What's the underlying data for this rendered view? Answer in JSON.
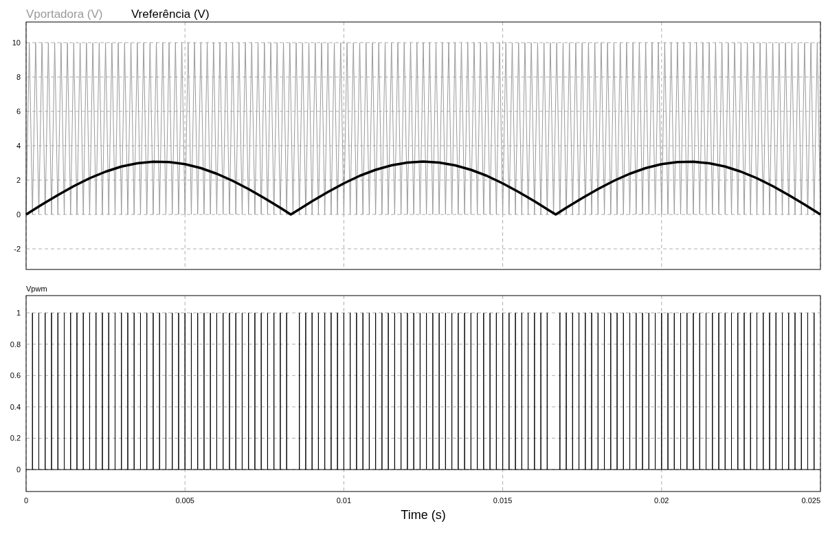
{
  "chart_data": [
    {
      "type": "line",
      "legend": "top left",
      "grid": true,
      "tick_labels": "y",
      "xlim": [
        0,
        0.025
      ],
      "ylim": [
        -3.2,
        11.2
      ],
      "yticks": [
        -2,
        0,
        2,
        4,
        6,
        8,
        10
      ],
      "xticks": [
        0,
        0.005,
        0.01,
        0.015,
        0.02,
        0.025
      ],
      "x": [
        0,
        0.0001,
        0.0002,
        0.0003,
        0.0004,
        0.0005,
        0.0006,
        0.0007,
        0.0008,
        0.0009,
        0.001,
        0.0011,
        0.0012,
        0.0013,
        0.0014,
        0.0015,
        0.0016,
        0.0017,
        0.0018,
        0.0019,
        0.002,
        0.0021,
        0.0022,
        0.0023,
        0.0024,
        0.0025,
        0.0026,
        0.0027,
        0.0028,
        0.0029,
        0.003,
        0.0031,
        0.0032,
        0.0033,
        0.0034,
        0.0035,
        0.0036,
        0.0037,
        0.0038,
        0.0039,
        0.004,
        0.0041,
        0.0042,
        0.0043,
        0.0044,
        0.0045,
        0.0046,
        0.0047,
        0.0048,
        0.0049,
        0.005,
        0.0051,
        0.0052,
        0.0053,
        0.0054,
        0.0055,
        0.0056,
        0.0057,
        0.0058,
        0.0059,
        0.006,
        0.0061,
        0.0062,
        0.0063,
        0.0064,
        0.0065,
        0.0066,
        0.0067,
        0.0068,
        0.0069,
        0.007,
        0.0071,
        0.0072,
        0.0073,
        0.0074,
        0.0075,
        0.0076,
        0.0077,
        0.0078,
        0.0079,
        0.008,
        0.0081,
        0.0082,
        0.0083,
        0.0084,
        0.0085,
        0.0086,
        0.0087,
        0.0088,
        0.0089,
        0.009,
        0.0091,
        0.0092,
        0.0093,
        0.0094,
        0.0095,
        0.0096,
        0.0097,
        0.0098,
        0.0099,
        0.01,
        0.0101,
        0.0102,
        0.0103,
        0.0104,
        0.0105,
        0.0106,
        0.0107,
        0.0108,
        0.0109,
        0.011,
        0.0111,
        0.0112,
        0.0113,
        0.0114,
        0.0115,
        0.0116,
        0.0117,
        0.0118,
        0.0119,
        0.012,
        0.0121,
        0.0122,
        0.0123,
        0.0124,
        0.0125,
        0.0126,
        0.0127,
        0.0128,
        0.0129,
        0.013,
        0.0131,
        0.0132,
        0.0133,
        0.0134,
        0.0135,
        0.0136,
        0.0137,
        0.0138,
        0.0139,
        0.014,
        0.0141,
        0.0142,
        0.0143,
        0.0144,
        0.0145,
        0.0146,
        0.0147,
        0.0148,
        0.0149,
        0.015,
        0.0151,
        0.0152,
        0.0153,
        0.0154,
        0.0155,
        0.0156,
        0.0157,
        0.0158,
        0.0159,
        0.016,
        0.0161,
        0.0162,
        0.0163,
        0.0164,
        0.0165,
        0.0166,
        0.0167,
        0.0168,
        0.0169,
        0.017,
        0.0171,
        0.0172,
        0.0173,
        0.0174,
        0.0175,
        0.0176,
        0.0177,
        0.0178,
        0.0179,
        0.018,
        0.0181,
        0.0182,
        0.0183,
        0.0184,
        0.0185,
        0.0186,
        0.0187,
        0.0188,
        0.0189,
        0.019,
        0.0191,
        0.0192,
        0.0193,
        0.0194,
        0.0195,
        0.0196,
        0.0197,
        0.0198,
        0.0199,
        0.02,
        0.0201,
        0.0202,
        0.0203,
        0.0204,
        0.0205,
        0.0206,
        0.0207,
        0.0208,
        0.0209,
        0.021,
        0.0211,
        0.0212,
        0.0213,
        0.0214,
        0.0215,
        0.0216,
        0.0217,
        0.0218,
        0.0219,
        0.022,
        0.0221,
        0.0222,
        0.0223,
        0.0224,
        0.0225,
        0.0226,
        0.0227,
        0.0228,
        0.0229,
        0.023,
        0.0231,
        0.0232,
        0.0233,
        0.0234,
        0.0235,
        0.0236,
        0.0237,
        0.0238,
        0.0239,
        0.024,
        0.0241,
        0.0242,
        0.0243,
        0.0244,
        0.0245,
        0.0246,
        0.0247,
        0.0248,
        0.0249,
        0.025
      ],
      "series": [
        {
          "name": "Vportadora (V)",
          "color": "#999999",
          "values": [
            0,
            10,
            0,
            10,
            0,
            10,
            0,
            10,
            0,
            10,
            0,
            10,
            0,
            10,
            0,
            10,
            0,
            10,
            0,
            10,
            0,
            10,
            0,
            10,
            0,
            10,
            0,
            10,
            0,
            10,
            0,
            10,
            0,
            10,
            0,
            10,
            0,
            10,
            0,
            10,
            0,
            10,
            0,
            10,
            0,
            10,
            0,
            10,
            0,
            10,
            0,
            10,
            0,
            10,
            0,
            10,
            0,
            10,
            0,
            10,
            0,
            10,
            0,
            10,
            0,
            10,
            0,
            10,
            0,
            10,
            0,
            10,
            0,
            10,
            0,
            10,
            0,
            10,
            0,
            10,
            0,
            10,
            0,
            10,
            0,
            10,
            0,
            10,
            0,
            10,
            0,
            10,
            0,
            10,
            0,
            10,
            0,
            10,
            0,
            10,
            0,
            10,
            0,
            10,
            0,
            10,
            0,
            10,
            0,
            10,
            0,
            10,
            0,
            10,
            0,
            10,
            0,
            10,
            0,
            10,
            0,
            10,
            0,
            10,
            0,
            10,
            0,
            10,
            0,
            10,
            0,
            10,
            0,
            10,
            0,
            10,
            0,
            10,
            0,
            10,
            0,
            10,
            0,
            10,
            0,
            10,
            0,
            10,
            0,
            10,
            0,
            10,
            0,
            10,
            0,
            10,
            0,
            10,
            0,
            10,
            0,
            10,
            0,
            10,
            0,
            10,
            0,
            10,
            0,
            10,
            0,
            10,
            0,
            10,
            0,
            10,
            0,
            10,
            0,
            10,
            0,
            10,
            0,
            10,
            0,
            10,
            0,
            10,
            0,
            10,
            0,
            10,
            0,
            10,
            0,
            10,
            0,
            10,
            0,
            10,
            0,
            10,
            0,
            10,
            0,
            10,
            0,
            10,
            0,
            10,
            0,
            10,
            0,
            10,
            0,
            10,
            0,
            10,
            0,
            10,
            0,
            10,
            0,
            10,
            0,
            10,
            0,
            10,
            0,
            10,
            0,
            10,
            0,
            10,
            0,
            10,
            0,
            10,
            0,
            10,
            0,
            10,
            0,
            10,
            0,
            10,
            0,
            10,
            0,
            10,
            0
          ]
        },
        {
          "name": "Vreferência (V)",
          "color": "#000000",
          "x": [
            0,
            0.0005,
            0.001,
            0.0015,
            0.002,
            0.0025,
            0.003,
            0.0035,
            0.004,
            0.0045,
            0.005,
            0.0055,
            0.006,
            0.0065,
            0.007,
            0.0075,
            0.008,
            0.00833,
            0.0085,
            0.009,
            0.0095,
            0.01,
            0.0105,
            0.011,
            0.0115,
            0.012,
            0.0125,
            0.013,
            0.0135,
            0.014,
            0.0145,
            0.015,
            0.0155,
            0.016,
            0.0165,
            0.01667,
            0.017,
            0.0175,
            0.018,
            0.0185,
            0.019,
            0.0195,
            0.02,
            0.0205,
            0.021,
            0.0215,
            0.022,
            0.0225,
            0.023,
            0.0235,
            0.024,
            0.0245,
            0.025
          ],
          "values": [
            0,
            0.58,
            1.13,
            1.65,
            2.11,
            2.49,
            2.79,
            2.98,
            3.07,
            3.05,
            2.93,
            2.7,
            2.37,
            1.96,
            1.48,
            0.95,
            0.39,
            0,
            0.19,
            0.77,
            1.31,
            1.81,
            2.25,
            2.6,
            2.86,
            3.02,
            3.08,
            3.02,
            2.86,
            2.6,
            2.25,
            1.81,
            1.31,
            0.77,
            0.19,
            0,
            0.39,
            0.95,
            1.48,
            1.96,
            2.37,
            2.7,
            2.93,
            3.05,
            3.07,
            2.98,
            2.79,
            2.49,
            2.11,
            1.65,
            1.13,
            0.58,
            0
          ]
        }
      ]
    },
    {
      "type": "line",
      "legend": "top left",
      "grid": true,
      "xlabel": "Time (s)",
      "xlim": [
        0,
        0.025
      ],
      "ylim": [
        -0.14,
        1.11
      ],
      "xticks": [
        0,
        0.005,
        0.01,
        0.015,
        0.02,
        0.025
      ],
      "yticks": [
        0,
        0.2,
        0.4,
        0.6,
        0.8,
        1
      ],
      "series": [
        {
          "name": "Vpwm",
          "color": "#000000",
          "x": [
            0,
            0.0002,
            0.0002,
            0.0002,
            0.0004,
            0.0004,
            0.0004,
            0.0006,
            0.0006,
            0.0006,
            0.0008,
            0.0008,
            0.0008,
            0.001,
            0.001,
            0.001,
            0.0012,
            0.0012,
            0.0012,
            0.0014,
            0.0014,
            0.0014,
            0.0016,
            0.0016,
            0.0016,
            0.0018,
            0.0018,
            0.0018,
            0.002,
            0.002,
            0.002,
            0.0022,
            0.0022,
            0.0022,
            0.0024,
            0.0024,
            0.0024,
            0.0026,
            0.0026,
            0.0026,
            0.0028,
            0.0028,
            0.0028,
            0.003,
            0.003,
            0.003,
            0.0032,
            0.0032,
            0.0032,
            0.0034,
            0.0034,
            0.0034,
            0.0036,
            0.0036,
            0.0036,
            0.0038,
            0.0038,
            0.0038,
            0.004,
            0.004,
            0.004,
            0.0042,
            0.0042,
            0.0042,
            0.0044,
            0.0044,
            0.0044,
            0.0046,
            0.0046,
            0.0046,
            0.0048,
            0.0048,
            0.0048,
            0.005,
            0.005,
            0.005,
            0.0052,
            0.0052,
            0.0052,
            0.0054,
            0.0054,
            0.0054,
            0.0056,
            0.0056,
            0.0056,
            0.0058,
            0.0058,
            0.0058,
            0.006,
            0.006,
            0.006,
            0.0062,
            0.0062,
            0.0062,
            0.0064,
            0.0064,
            0.0064,
            0.0066,
            0.0066,
            0.0066,
            0.0068,
            0.0068,
            0.0068,
            0.007,
            0.007,
            0.007,
            0.0072,
            0.0072,
            0.0072,
            0.0074,
            0.0074,
            0.0074,
            0.0076,
            0.0076,
            0.0076,
            0.0078,
            0.0078,
            0.0078,
            0.008,
            0.008,
            0.008,
            0.0082,
            0.0082,
            0.0082,
            0.0086,
            0.0086,
            0.0086,
            0.0088,
            0.0088,
            0.0088,
            0.009,
            0.009,
            0.009,
            0.0092,
            0.0092,
            0.0092,
            0.0094,
            0.0094,
            0.0094,
            0.0096,
            0.0096,
            0.0096,
            0.0098,
            0.0098,
            0.0098,
            0.01,
            0.01,
            0.01,
            0.0102,
            0.0102,
            0.0102,
            0.0104,
            0.0104,
            0.0104,
            0.0106,
            0.0106,
            0.0106,
            0.0108,
            0.0108,
            0.0108,
            0.011,
            0.011,
            0.011,
            0.0112,
            0.0112,
            0.0112,
            0.0114,
            0.0114,
            0.0114,
            0.0116,
            0.0116,
            0.0116,
            0.0118,
            0.0118,
            0.0118,
            0.012,
            0.012,
            0.012,
            0.0122,
            0.0122,
            0.0122,
            0.0124,
            0.0124,
            0.0124,
            0.0126,
            0.0126,
            0.0126,
            0.0128,
            0.0128,
            0.0128,
            0.013,
            0.013,
            0.013,
            0.0132,
            0.0132,
            0.0132,
            0.0134,
            0.0134,
            0.0134,
            0.0136,
            0.0136,
            0.0136,
            0.0138,
            0.0138,
            0.0138,
            0.014,
            0.014,
            0.014,
            0.0142,
            0.0142,
            0.0142,
            0.0144,
            0.0144,
            0.0144,
            0.0146,
            0.0146,
            0.0146,
            0.0148,
            0.0148,
            0.0148,
            0.015,
            0.015,
            0.015,
            0.0152,
            0.0152,
            0.0152,
            0.0154,
            0.0154,
            0.0154,
            0.0156,
            0.0156,
            0.0156,
            0.0158,
            0.0158,
            0.0158,
            0.016,
            0.016,
            0.016,
            0.0162,
            0.0162,
            0.0162,
            0.0164,
            0.0164,
            0.0164,
            0.0168,
            0.0168,
            0.0168,
            0.017,
            0.017,
            0.017,
            0.0172,
            0.0172,
            0.0172,
            0.0174,
            0.0174,
            0.0174,
            0.0176,
            0.0176,
            0.0176,
            0.0178,
            0.0178,
            0.0178,
            0.018,
            0.018,
            0.018,
            0.0182,
            0.0182,
            0.0182,
            0.0184,
            0.0184,
            0.0184,
            0.0186,
            0.0186,
            0.0186,
            0.0188,
            0.0188,
            0.0188,
            0.019,
            0.019,
            0.019,
            0.0192,
            0.0192,
            0.0192,
            0.0194,
            0.0194,
            0.0194,
            0.0196,
            0.0196,
            0.0196,
            0.0198,
            0.0198,
            0.0198,
            0.02,
            0.02,
            0.02,
            0.0202,
            0.0202,
            0.0202,
            0.0204,
            0.0204,
            0.0204,
            0.0206,
            0.0206,
            0.0206,
            0.0208,
            0.0208,
            0.0208,
            0.021,
            0.021,
            0.021,
            0.0212,
            0.0212,
            0.0212,
            0.0214,
            0.0214,
            0.0214,
            0.0216,
            0.0216,
            0.0216,
            0.0218,
            0.0218,
            0.0218,
            0.022,
            0.022,
            0.022,
            0.0222,
            0.0222,
            0.0222,
            0.0224,
            0.0224,
            0.0224,
            0.0226,
            0.0226,
            0.0226,
            0.0228,
            0.0228,
            0.0228,
            0.023,
            0.023,
            0.023,
            0.0232,
            0.0232,
            0.0232,
            0.0234,
            0.0234,
            0.0234,
            0.0236,
            0.0236,
            0.0236,
            0.0238,
            0.0238,
            0.0238,
            0.024,
            0.024,
            0.024,
            0.0242,
            0.0242,
            0.0242,
            0.0244,
            0.0244,
            0.0244,
            0.0246,
            0.0246,
            0.0246,
            0.0248,
            0.0248,
            0.0248,
            0.025
          ],
          "values": [
            0,
            0,
            1,
            0,
            0,
            1,
            0,
            0,
            1,
            0,
            0,
            1,
            0,
            0,
            1,
            0,
            0,
            1,
            0,
            0,
            1,
            0,
            0,
            1,
            0,
            0,
            1,
            0,
            0,
            1,
            0,
            0,
            1,
            0,
            0,
            1,
            0,
            0,
            1,
            0,
            0,
            1,
            0,
            0,
            1,
            0,
            0,
            1,
            0,
            0,
            1,
            0,
            0,
            1,
            0,
            0,
            1,
            0,
            0,
            1,
            0,
            0,
            1,
            0,
            0,
            1,
            0,
            0,
            1,
            0,
            0,
            1,
            0,
            0,
            1,
            0,
            0,
            1,
            0,
            0,
            1,
            0,
            0,
            1,
            0,
            0,
            1,
            0,
            0,
            1,
            0,
            0,
            1,
            0,
            0,
            1,
            0,
            0,
            1,
            0,
            0,
            1,
            0,
            0,
            1,
            0,
            0,
            1,
            0,
            0,
            1,
            0,
            0,
            1,
            0,
            0,
            1,
            0,
            0,
            1,
            0,
            0,
            1,
            0,
            0,
            1,
            0,
            0,
            1,
            0,
            0,
            1,
            0,
            0,
            1,
            0,
            0,
            1,
            0,
            0,
            1,
            0,
            0,
            1,
            0,
            0,
            1,
            0,
            0,
            1,
            0,
            0,
            1,
            0,
            0,
            1,
            0,
            0,
            1,
            0,
            0,
            1,
            0,
            0,
            1,
            0,
            0,
            1,
            0,
            0,
            1,
            0,
            0,
            1,
            0,
            0,
            1,
            0,
            0,
            1,
            0,
            0,
            1,
            0,
            0,
            1,
            0,
            0,
            1,
            0,
            0,
            1,
            0,
            0,
            1,
            0,
            0,
            1,
            0,
            0,
            1,
            0,
            0,
            1,
            0,
            0,
            1,
            0,
            0,
            1,
            0,
            0,
            1,
            0,
            0,
            1,
            0,
            0,
            1,
            0,
            0,
            1,
            0,
            0,
            1,
            0,
            0,
            1,
            0,
            0,
            1,
            0,
            0,
            1,
            0,
            0,
            1,
            0,
            0,
            1,
            0,
            0,
            1,
            0,
            0,
            1,
            0,
            0,
            1,
            0,
            0,
            1,
            0,
            0,
            1,
            0,
            0,
            1,
            0,
            0,
            1,
            0,
            0,
            1,
            0,
            0,
            1,
            0,
            0,
            1,
            0,
            0,
            1,
            0,
            0,
            1,
            0,
            0,
            1,
            0,
            0,
            1,
            0,
            0,
            1,
            0,
            0,
            1,
            0,
            0,
            1,
            0,
            0,
            1,
            0,
            0,
            1,
            0,
            0,
            1,
            0,
            0,
            1,
            0,
            0,
            1,
            0,
            0,
            1,
            0,
            0,
            1,
            0,
            0,
            1,
            0,
            0,
            1,
            0,
            0,
            1,
            0,
            0,
            1,
            0,
            0,
            1,
            0,
            0,
            1,
            0,
            0,
            1,
            0,
            0,
            1,
            0,
            0,
            1,
            0,
            0,
            1,
            0,
            0,
            1,
            0,
            0,
            1,
            0,
            0,
            1,
            0,
            0,
            1,
            0,
            0,
            1,
            0,
            0,
            1,
            0,
            0,
            1,
            0,
            0,
            1,
            0,
            0
          ]
        }
      ]
    }
  ]
}
